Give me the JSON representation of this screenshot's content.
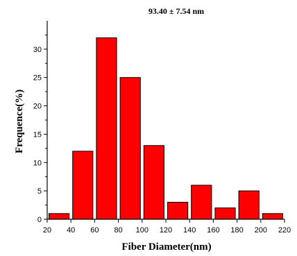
{
  "chart_data": {
    "type": "bar",
    "title": "93.40 ± 7.54 nm",
    "xlabel": "Fiber Diameter(nm)",
    "ylabel": "Frequence(%)",
    "xlim": [
      20,
      220
    ],
    "ylim": [
      0,
      35
    ],
    "xticks": [
      20,
      40,
      60,
      80,
      100,
      120,
      140,
      160,
      180,
      200,
      220
    ],
    "yticks": [
      0,
      5,
      10,
      15,
      20,
      25,
      30
    ],
    "bin_width": 20,
    "bins": [
      {
        "center": 30,
        "value": 1
      },
      {
        "center": 50,
        "value": 12
      },
      {
        "center": 70,
        "value": 32
      },
      {
        "center": 90,
        "value": 25
      },
      {
        "center": 110,
        "value": 13
      },
      {
        "center": 130,
        "value": 3
      },
      {
        "center": 150,
        "value": 6
      },
      {
        "center": 170,
        "value": 2
      },
      {
        "center": 190,
        "value": 5
      },
      {
        "center": 210,
        "value": 1
      }
    ],
    "bar_color": "#ff0000",
    "edge_color": "#000000",
    "grid": false,
    "legend": "none"
  }
}
